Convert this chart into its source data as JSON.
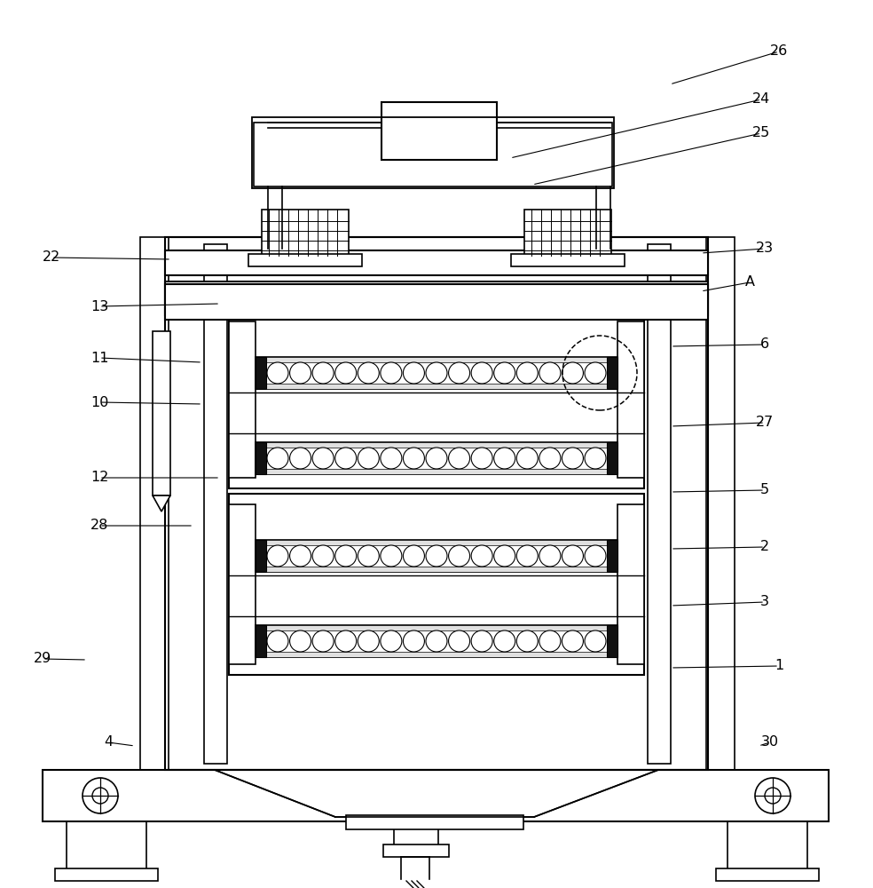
{
  "bg": "#ffffff",
  "lc": "#000000",
  "figsize": [
    9.84,
    10.0
  ],
  "dpi": 100,
  "label_defs": [
    [
      "26",
      755,
      95,
      878,
      58
    ],
    [
      "24",
      575,
      178,
      858,
      112
    ],
    [
      "25",
      600,
      208,
      858,
      150
    ],
    [
      "22",
      193,
      292,
      58,
      290
    ],
    [
      "23",
      790,
      285,
      862,
      280
    ],
    [
      "A",
      790,
      328,
      845,
      318
    ],
    [
      "13",
      248,
      342,
      112,
      345
    ],
    [
      "6",
      756,
      390,
      862,
      388
    ],
    [
      "11",
      228,
      408,
      112,
      403
    ],
    [
      "10",
      228,
      455,
      112,
      453
    ],
    [
      "27",
      756,
      480,
      862,
      476
    ],
    [
      "12",
      248,
      538,
      112,
      538
    ],
    [
      "5",
      756,
      554,
      862,
      552
    ],
    [
      "28",
      218,
      592,
      112,
      592
    ],
    [
      "2",
      756,
      618,
      862,
      616
    ],
    [
      "3",
      756,
      682,
      862,
      678
    ],
    [
      "1",
      756,
      752,
      878,
      750
    ],
    [
      "29",
      98,
      743,
      48,
      742
    ],
    [
      "30",
      855,
      840,
      868,
      836
    ],
    [
      "4",
      152,
      840,
      122,
      836
    ]
  ]
}
